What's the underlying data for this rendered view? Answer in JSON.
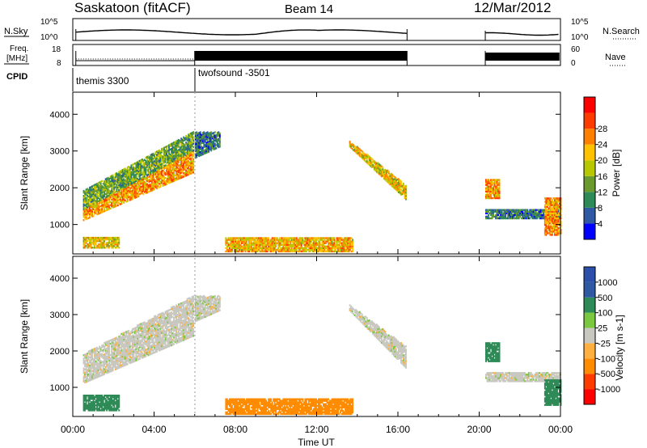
{
  "header": {
    "station": "Saskatoon (fitACF)",
    "beam": "Beam 14",
    "date": "12/Mar/2012"
  },
  "noise_panel": {
    "left_label": "N.Sky",
    "left_ticks": [
      "10^5",
      "10^0"
    ],
    "right_label": "N.Search",
    "right_ticks": [
      "10^5",
      "10^0"
    ]
  },
  "freq_panel": {
    "left_label_line1": "Freq.",
    "left_label_line2": "[MHz]",
    "left_ticks": [
      "18",
      "8"
    ],
    "right_label": "Nave",
    "right_ticks": [
      "60",
      "0"
    ]
  },
  "cpid": {
    "label": "CPID",
    "modes": [
      {
        "name": "themis 3300",
        "start_hour": 0
      },
      {
        "name": "twofsound -3501",
        "start_hour": 6
      }
    ]
  },
  "colors": {
    "power_scale": [
      "#0000ff",
      "#2f5aa3",
      "#2e8b57",
      "#6a9a2e",
      "#b8c800",
      "#ffc200",
      "#ff7f00",
      "#ff3c00",
      "#ff0000"
    ],
    "velocity_scale": [
      "#ff0000",
      "#ff3c00",
      "#ff8c00",
      "#ffb040",
      "#c8c8c0",
      "#7ac840",
      "#2e8b57",
      "#2f5aa3",
      "#2b4faa"
    ]
  },
  "chart_data": [
    {
      "type": "heatmap",
      "name": "power",
      "ylabel": "Slant Range [km]",
      "xlim": [
        0,
        24
      ],
      "ylim": [
        200,
        4600
      ],
      "yticks": [
        "1000",
        "2000",
        "3000",
        "4000"
      ],
      "colorbar": {
        "label": "Power [dB]",
        "ticks": [
          "4",
          "8",
          "12",
          "16",
          "20",
          "24",
          "28"
        ],
        "range": [
          0,
          32
        ]
      },
      "regions": [
        {
          "t0": 0.5,
          "t1": 5.9,
          "r0": 1100,
          "r1": 1400,
          "r_end0": 2400,
          "r_end1": 3000,
          "value": 22
        },
        {
          "t0": 0.5,
          "t1": 5.9,
          "r0": 1400,
          "r1": 1900,
          "r_end0": 3000,
          "r_end1": 3500,
          "value": 12
        },
        {
          "t0": 0.5,
          "t1": 2.3,
          "r0": 350,
          "r1": 650,
          "r_end0": 350,
          "r_end1": 650,
          "value": 18
        },
        {
          "t0": 6.0,
          "t1": 7.2,
          "r0": 2800,
          "r1": 3500,
          "r_end0": 3100,
          "r_end1": 3500,
          "value": 8
        },
        {
          "t0": 7.5,
          "t1": 13.8,
          "r0": 250,
          "r1": 650,
          "r_end0": 250,
          "r_end1": 650,
          "value": 20
        },
        {
          "t0": 13.6,
          "t1": 16.4,
          "r0": 3100,
          "r1": 3250,
          "r_end0": 1650,
          "r_end1": 2050,
          "value": 18
        },
        {
          "t0": 20.3,
          "t1": 21.0,
          "r0": 1700,
          "r1": 2200,
          "r_end0": 1700,
          "r_end1": 2200,
          "value": 22
        },
        {
          "t0": 20.3,
          "t1": 24.0,
          "r0": 1150,
          "r1": 1400,
          "r_end0": 1150,
          "r_end1": 1400,
          "value": 8
        },
        {
          "t0": 23.2,
          "t1": 24.0,
          "r0": 700,
          "r1": 1700,
          "r_end0": 700,
          "r_end1": 1700,
          "value": 22
        }
      ]
    },
    {
      "type": "heatmap",
      "name": "velocity",
      "ylabel": "Slant Range [km]",
      "xlabel": "Time UT",
      "xlim": [
        0,
        24
      ],
      "ylim": [
        200,
        4600
      ],
      "xticks": [
        "00:00",
        "04:00",
        "08:00",
        "12:00",
        "16:00",
        "20:00",
        "00:00"
      ],
      "yticks": [
        "1000",
        "2000",
        "3000",
        "4000"
      ],
      "colorbar": {
        "label": "Velocity [m s-1]",
        "ticks": [
          "1000",
          "500",
          "100",
          "25",
          "-25",
          "-100",
          "-500",
          "-1000"
        ]
      },
      "regions": [
        {
          "t0": 0.5,
          "t1": 5.9,
          "r0": 1100,
          "r1": 1900,
          "r_end0": 2400,
          "r_end1": 3500,
          "value": 0
        },
        {
          "t0": 0.5,
          "t1": 2.3,
          "r0": 350,
          "r1": 800,
          "r_end0": 350,
          "r_end1": 800,
          "value": 150
        },
        {
          "t0": 6.0,
          "t1": 7.2,
          "r0": 2800,
          "r1": 3500,
          "r_end0": 3100,
          "r_end1": 3500,
          "value": 0
        },
        {
          "t0": 7.5,
          "t1": 13.8,
          "r0": 250,
          "r1": 700,
          "r_end0": 250,
          "r_end1": 700,
          "value": -150
        },
        {
          "t0": 13.6,
          "t1": 16.4,
          "r0": 3100,
          "r1": 3250,
          "r_end0": 1500,
          "r_end1": 2100,
          "value": 0
        },
        {
          "t0": 20.3,
          "t1": 21.0,
          "r0": 1700,
          "r1": 2200,
          "r_end0": 1700,
          "r_end1": 2200,
          "value": 200
        },
        {
          "t0": 20.3,
          "t1": 24.0,
          "r0": 1150,
          "r1": 1400,
          "r_end0": 1150,
          "r_end1": 1400,
          "value": 0
        },
        {
          "t0": 23.2,
          "t1": 24.0,
          "r0": 500,
          "r1": 1200,
          "r_end0": 500,
          "r_end1": 1200,
          "value": 300
        }
      ]
    }
  ]
}
